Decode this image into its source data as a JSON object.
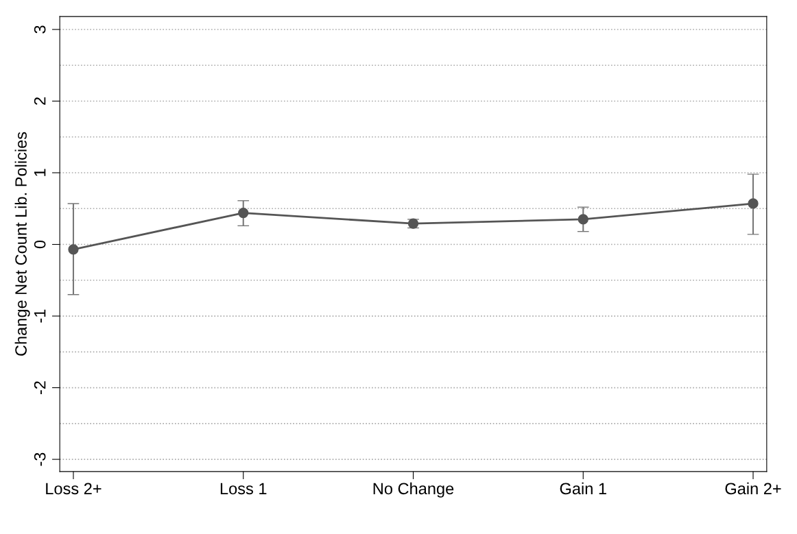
{
  "chart_data": {
    "type": "line",
    "ylabel": "Change Net Count Lib. Policies",
    "categories": [
      "Loss 2+",
      "Loss 1",
      "No Change",
      "Gain 1",
      "Gain 2+"
    ],
    "series": [
      {
        "color": "#555555",
        "values": [
          -0.07,
          0.44,
          0.29,
          0.35,
          0.57
        ],
        "errors": [
          [
            -0.7,
            0.57
          ],
          [
            0.26,
            0.61
          ],
          [
            0.23,
            0.35
          ],
          [
            0.18,
            0.52
          ],
          [
            0.14,
            0.98
          ]
        ]
      }
    ],
    "ylim": [
      -3.17,
      3.18
    ],
    "yticks": [
      -3,
      {
        "value": -2.5,
        "label": null
      },
      -2,
      {
        "value": -1.5,
        "label": null
      },
      -1,
      {
        "value": -0.5,
        "label": null
      },
      0,
      {
        "value": 0.5,
        "label": null
      },
      1,
      {
        "value": 1.5,
        "label": null
      },
      2,
      {
        "value": 2.5,
        "label": null
      },
      3
    ],
    "grid": "y",
    "marker": "circle",
    "line_style": "solid"
  }
}
